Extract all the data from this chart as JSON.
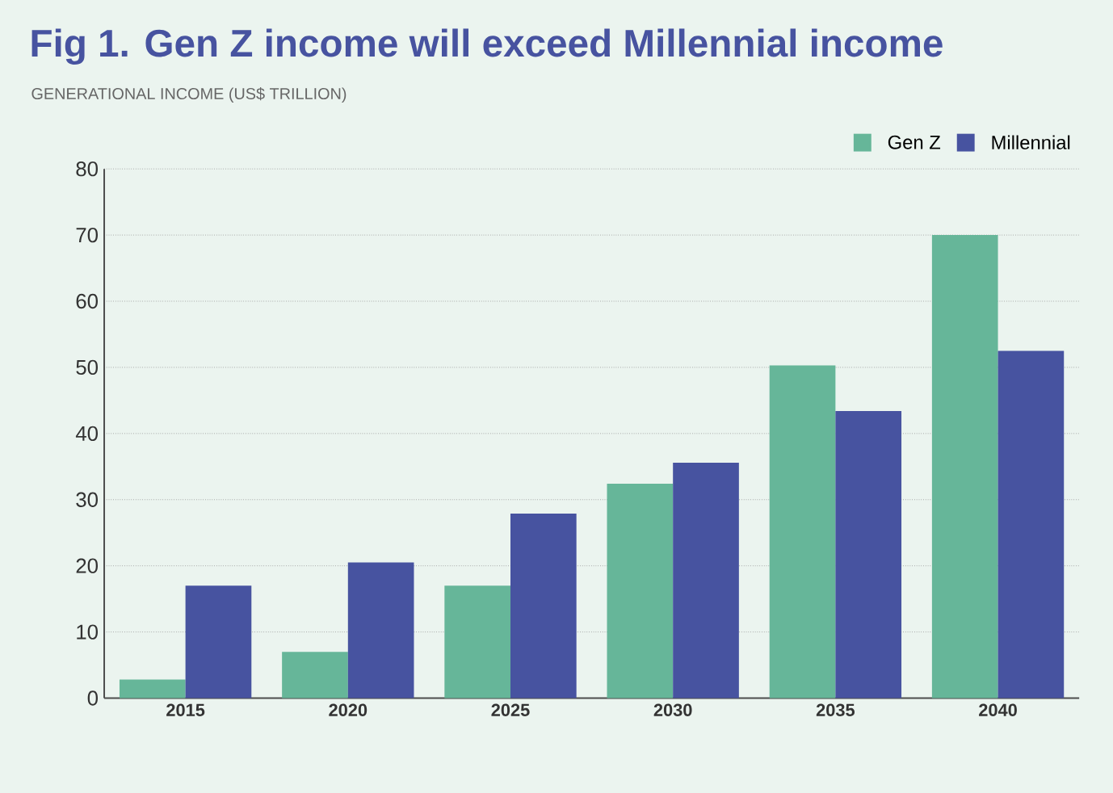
{
  "chart_data": {
    "type": "bar",
    "title": "Fig 1. Gen Z income will exceed Millennial income",
    "ylabel": "GENERATIONAL INCOME (US$ TRILLION)",
    "categories": [
      "2015",
      "2020",
      "2025",
      "2030",
      "2035",
      "2040"
    ],
    "series": [
      {
        "name": "Gen Z",
        "color": "#66b699",
        "values": [
          2.8,
          7.0,
          17.0,
          32.4,
          50.3,
          70.0
        ]
      },
      {
        "name": "Millennial",
        "color": "#4753a0",
        "values": [
          17.0,
          20.5,
          27.9,
          35.6,
          43.4,
          52.5
        ]
      }
    ],
    "ylim": [
      0,
      80
    ],
    "yticks": [
      0,
      10,
      20,
      30,
      40,
      50,
      60,
      70,
      80
    ],
    "grid": "y",
    "legend": "top right"
  }
}
